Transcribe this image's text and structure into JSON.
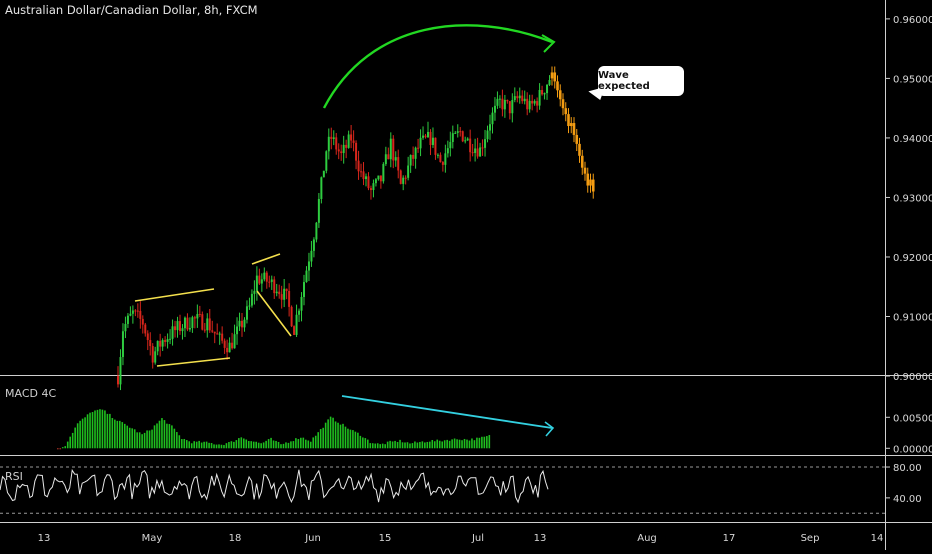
{
  "header": {
    "title": "Australian Dollar/Canadian Dollar, 8h, FXCM"
  },
  "annotation": {
    "text": "Wave expected"
  },
  "colors": {
    "up": "#2ecc40",
    "down": "#d9261c",
    "projection": "#f39c12",
    "wedge": "#f4e04d",
    "arc": "#22d822",
    "divergence": "#33d0e0",
    "macd": "#1fbf1f",
    "rsi": "#e8e8e8",
    "axis_text": "#d8d8d8"
  },
  "chart_data": [
    {
      "type": "candlestick",
      "title": "Australian Dollar/Canadian Dollar, 8h, FXCM",
      "ylim": [
        0.8995,
        0.9625
      ],
      "yticks": [
        0.9,
        0.91,
        0.92,
        0.93,
        0.94,
        0.95,
        0.96
      ],
      "ytick_labels": [
        "0.90000",
        "0.91000",
        "0.92000",
        "0.93000",
        "0.94000",
        "0.95000",
        "0.96000"
      ],
      "xtick_labels": [
        "13",
        "May",
        "18",
        "Jun",
        "15",
        "Jul",
        "13",
        "Aug",
        "17",
        "Sep",
        "14"
      ],
      "price_path": [
        [
          0,
          0.9
        ],
        [
          2,
          0.908
        ],
        [
          6,
          0.9105
        ],
        [
          10,
          0.909
        ],
        [
          14,
          0.9035
        ],
        [
          18,
          0.906
        ],
        [
          24,
          0.908
        ],
        [
          30,
          0.9095
        ],
        [
          36,
          0.909
        ],
        [
          41,
          0.906
        ],
        [
          45,
          0.905
        ],
        [
          49,
          0.908
        ],
        [
          53,
          0.9115
        ],
        [
          56,
          0.9165
        ],
        [
          60,
          0.916
        ],
        [
          64,
          0.915
        ],
        [
          68,
          0.913
        ],
        [
          71,
          0.908
        ],
        [
          73,
          0.912
        ],
        [
          76,
          0.918
        ],
        [
          79,
          0.924
        ],
        [
          82,
          0.932
        ],
        [
          84,
          0.938
        ],
        [
          86,
          0.94
        ],
        [
          90,
          0.937
        ],
        [
          94,
          0.94
        ],
        [
          98,
          0.934
        ],
        [
          102,
          0.931
        ],
        [
          106,
          0.933
        ],
        [
          110,
          0.939
        ],
        [
          114,
          0.932
        ],
        [
          118,
          0.936
        ],
        [
          122,
          0.939
        ],
        [
          126,
          0.94
        ],
        [
          130,
          0.936
        ],
        [
          134,
          0.939
        ],
        [
          138,
          0.941
        ],
        [
          142,
          0.939
        ],
        [
          146,
          0.938
        ],
        [
          150,
          0.943
        ],
        [
          154,
          0.946
        ],
        [
          158,
          0.945
        ],
        [
          162,
          0.947
        ],
        [
          166,
          0.945
        ],
        [
          170,
          0.947
        ],
        [
          174,
          0.95
        ]
      ],
      "projection": [
        0.951,
        0.9495,
        0.948,
        0.9465,
        0.945,
        0.944,
        0.942,
        0.9425,
        0.9405,
        0.939,
        0.937,
        0.935,
        0.934,
        0.932,
        0.933,
        0.931
      ]
    },
    {
      "type": "bar",
      "title": "MACD 4C",
      "ylim": [
        -0.0006,
        0.0115
      ],
      "yticks": [
        0.0,
        0.005
      ],
      "ytick_labels": [
        "0.00000",
        "0.00500"
      ],
      "values_path": [
        [
          0,
          -0.0002
        ],
        [
          3,
          0.0005
        ],
        [
          8,
          0.004
        ],
        [
          14,
          0.006
        ],
        [
          18,
          0.0062
        ],
        [
          24,
          0.0045
        ],
        [
          30,
          0.0032
        ],
        [
          34,
          0.0022
        ],
        [
          38,
          0.0032
        ],
        [
          42,
          0.0048
        ],
        [
          46,
          0.0035
        ],
        [
          50,
          0.0016
        ],
        [
          54,
          0.001
        ],
        [
          58,
          0.001
        ],
        [
          62,
          0.0008
        ],
        [
          66,
          0.0006
        ],
        [
          70,
          0.001
        ],
        [
          74,
          0.0018
        ],
        [
          78,
          0.0012
        ],
        [
          82,
          0.0008
        ],
        [
          86,
          0.0015
        ],
        [
          90,
          0.0006
        ],
        [
          94,
          0.0012
        ],
        [
          98,
          0.0018
        ],
        [
          102,
          0.0012
        ],
        [
          106,
          0.003
        ],
        [
          110,
          0.005
        ],
        [
          114,
          0.004
        ],
        [
          118,
          0.003
        ],
        [
          122,
          0.0022
        ],
        [
          126,
          0.001
        ],
        [
          130,
          0.0006
        ],
        [
          134,
          0.001
        ],
        [
          138,
          0.0012
        ],
        [
          142,
          0.0008
        ],
        [
          146,
          0.001
        ],
        [
          150,
          0.0012
        ],
        [
          154,
          0.0012
        ],
        [
          158,
          0.0014
        ],
        [
          162,
          0.0015
        ],
        [
          166,
          0.0014
        ],
        [
          170,
          0.0016
        ],
        [
          174,
          0.002
        ]
      ]
    },
    {
      "type": "line",
      "title": "RSI",
      "ylim": [
        10,
        93
      ],
      "yticks": [
        40,
        80
      ],
      "ytick_labels": [
        "40.00",
        "80.00"
      ]
    }
  ]
}
